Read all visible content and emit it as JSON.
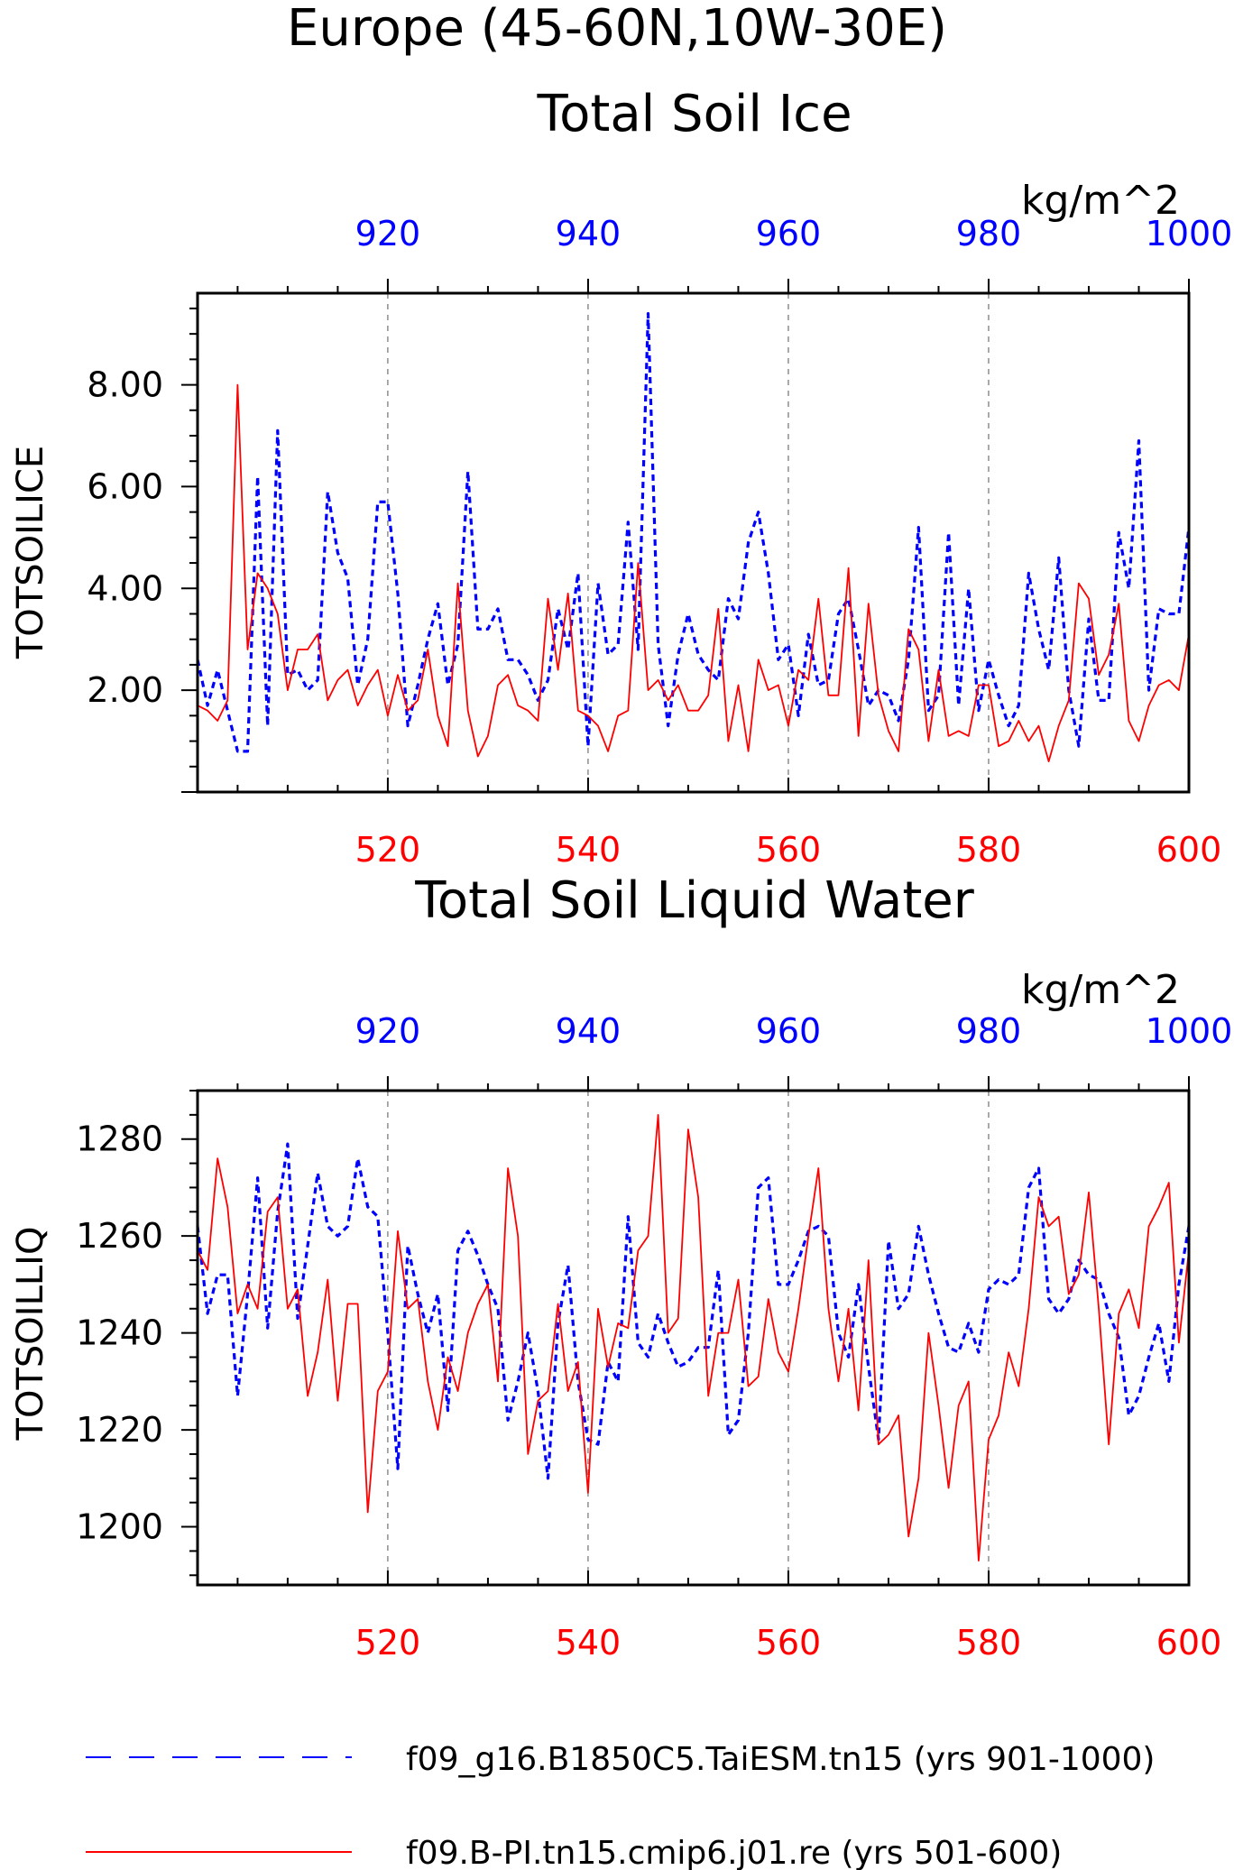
{
  "title": "Europe (45-60N,10W-30E)",
  "legend": {
    "position": "bottom",
    "items": [
      {
        "label": "f09_g16.B1850C5.TaiESM.tn15 (yrs 901-1000)",
        "color": "#0000ff",
        "style": "dashed"
      },
      {
        "label": "f09.B-PI.tn15.cmip6.j01.re (yrs 501-600)",
        "color": "#ff0000",
        "style": "solid"
      }
    ]
  },
  "chart_data": [
    {
      "type": "line",
      "title": "Total Soil Ice",
      "ylabel": "TOTSOILICE",
      "units": "kg/m^2",
      "ylim": [
        0,
        9.8
      ],
      "yticks": [
        2,
        4,
        6,
        8
      ],
      "ytick_labels": [
        "2.00",
        "4.00",
        "6.00",
        "8.00"
      ],
      "x_bottom": {
        "lim": [
          501,
          600
        ],
        "ticks": [
          520,
          540,
          560,
          580,
          600
        ],
        "color": "#ff0000"
      },
      "x_top": {
        "lim": [
          901,
          1000
        ],
        "ticks": [
          920,
          940,
          960,
          980,
          1000
        ],
        "color": "#0000ff"
      },
      "grid": "vertical dashed at major ticks",
      "series": [
        {
          "name": "f09_g16.B1850C5.TaiESM.tn15 (yrs 901-1000)",
          "axis": "top",
          "color": "#0000ff",
          "style": "dashed",
          "x_start": 901,
          "values": [
            2.6,
            1.7,
            2.4,
            1.6,
            0.8,
            0.8,
            6.2,
            1.3,
            7.1,
            2.3,
            2.4,
            2.0,
            2.2,
            5.9,
            4.7,
            4.2,
            2.1,
            3.0,
            5.7,
            5.7,
            3.9,
            1.3,
            2.1,
            3.0,
            3.7,
            2.1,
            2.9,
            6.3,
            3.2,
            3.2,
            3.6,
            2.6,
            2.6,
            2.3,
            1.8,
            2.2,
            3.6,
            2.8,
            4.3,
            0.9,
            4.1,
            2.7,
            2.9,
            5.3,
            2.8,
            9.4,
            2.9,
            1.3,
            2.7,
            3.5,
            2.7,
            2.4,
            2.2,
            3.8,
            3.4,
            4.9,
            5.5,
            4.3,
            2.6,
            2.9,
            1.5,
            3.1,
            2.1,
            2.2,
            3.5,
            3.8,
            2.8,
            1.7,
            2.0,
            1.9,
            1.4,
            2.6,
            5.2,
            1.6,
            1.9,
            5.1,
            1.7,
            4.0,
            1.6,
            2.6,
            1.9,
            1.3,
            1.7,
            4.3,
            3.2,
            2.4,
            4.6,
            2.0,
            0.9,
            3.4,
            1.8,
            1.8,
            5.1,
            4.0,
            6.9,
            2.0,
            3.6,
            3.5,
            3.5,
            5.2
          ]
        },
        {
          "name": "f09.B-PI.tn15.cmip6.j01.re (yrs 501-600)",
          "axis": "bottom",
          "color": "#ff0000",
          "style": "solid",
          "x_start": 501,
          "values": [
            1.7,
            1.6,
            1.4,
            1.8,
            8.0,
            2.8,
            4.3,
            4.0,
            3.5,
            2.0,
            2.8,
            2.8,
            3.1,
            1.8,
            2.2,
            2.4,
            1.7,
            2.1,
            2.4,
            1.5,
            2.3,
            1.6,
            1.8,
            2.8,
            1.5,
            0.9,
            4.1,
            1.6,
            0.7,
            1.1,
            2.1,
            2.3,
            1.7,
            1.6,
            1.4,
            3.8,
            2.4,
            3.9,
            1.6,
            1.5,
            1.3,
            0.8,
            1.5,
            1.6,
            4.5,
            2.0,
            2.2,
            1.8,
            2.1,
            1.6,
            1.6,
            1.9,
            3.6,
            1.0,
            2.1,
            0.8,
            2.6,
            2.0,
            2.1,
            1.3,
            2.4,
            2.2,
            3.8,
            1.9,
            1.9,
            4.4,
            1.1,
            3.7,
            1.9,
            1.2,
            0.8,
            3.2,
            2.8,
            1.0,
            2.4,
            1.1,
            1.2,
            1.1,
            2.1,
            2.1,
            0.9,
            1.0,
            1.4,
            1.0,
            1.3,
            0.6,
            1.3,
            1.8,
            4.1,
            3.8,
            2.3,
            2.7,
            3.7,
            1.4,
            1.0,
            1.7,
            2.1,
            2.2,
            2.0,
            3.1
          ]
        }
      ]
    },
    {
      "type": "line",
      "title": "Total Soil Liquid Water",
      "ylabel": "TOTSOILLIQ",
      "units": "kg/m^2",
      "ylim": [
        1188,
        1290
      ],
      "yticks": [
        1200,
        1220,
        1240,
        1260,
        1280
      ],
      "ytick_labels": [
        "1200",
        "1220",
        "1240",
        "1260",
        "1280"
      ],
      "x_bottom": {
        "lim": [
          501,
          600
        ],
        "ticks": [
          520,
          540,
          560,
          580,
          600
        ],
        "color": "#ff0000"
      },
      "x_top": {
        "lim": [
          901,
          1000
        ],
        "ticks": [
          920,
          940,
          960,
          980,
          1000
        ],
        "color": "#0000ff"
      },
      "grid": "vertical dashed at major ticks",
      "series": [
        {
          "name": "f09_g16.B1850C5.TaiESM.tn15 (yrs 901-1000)",
          "axis": "top",
          "color": "#0000ff",
          "style": "dashed",
          "x_start": 901,
          "values": [
            1262,
            1244,
            1252,
            1252,
            1227,
            1248,
            1272,
            1241,
            1265,
            1279,
            1243,
            1258,
            1273,
            1262,
            1260,
            1262,
            1276,
            1266,
            1264,
            1240,
            1212,
            1258,
            1248,
            1240,
            1248,
            1224,
            1257,
            1261,
            1256,
            1250,
            1245,
            1222,
            1230,
            1240,
            1228,
            1210,
            1242,
            1254,
            1230,
            1218,
            1217,
            1234,
            1230,
            1264,
            1238,
            1235,
            1244,
            1238,
            1233,
            1234,
            1237,
            1237,
            1253,
            1219,
            1222,
            1240,
            1270,
            1272,
            1250,
            1250,
            1255,
            1261,
            1262,
            1260,
            1240,
            1235,
            1250,
            1233,
            1218,
            1259,
            1245,
            1248,
            1262,
            1252,
            1244,
            1237,
            1236,
            1242,
            1236,
            1249,
            1251,
            1250,
            1252,
            1270,
            1274,
            1247,
            1244,
            1247,
            1255,
            1252,
            1251,
            1244,
            1239,
            1223,
            1227,
            1235,
            1242,
            1230,
            1250,
            1262
          ]
        },
        {
          "name": "f09.B-PI.tn15.cmip6.j01.re (yrs 501-600)",
          "axis": "bottom",
          "color": "#ff0000",
          "style": "solid",
          "x_start": 501,
          "values": [
            1257,
            1253,
            1276,
            1266,
            1244,
            1250,
            1245,
            1265,
            1268,
            1245,
            1249,
            1227,
            1236,
            1251,
            1226,
            1246,
            1246,
            1203,
            1228,
            1232,
            1261,
            1245,
            1247,
            1230,
            1220,
            1235,
            1228,
            1240,
            1246,
            1250,
            1230,
            1274,
            1260,
            1215,
            1226,
            1228,
            1246,
            1228,
            1234,
            1207,
            1245,
            1233,
            1242,
            1241,
            1257,
            1260,
            1285,
            1240,
            1243,
            1282,
            1268,
            1227,
            1240,
            1240,
            1251,
            1229,
            1231,
            1247,
            1236,
            1232,
            1245,
            1260,
            1274,
            1245,
            1230,
            1245,
            1224,
            1255,
            1217,
            1219,
            1223,
            1198,
            1210,
            1240,
            1225,
            1208,
            1225,
            1230,
            1193,
            1218,
            1223,
            1236,
            1229,
            1245,
            1268,
            1262,
            1264,
            1248,
            1252,
            1269,
            1245,
            1217,
            1244,
            1249,
            1241,
            1262,
            1266,
            1271,
            1238,
            1257
          ]
        }
      ]
    }
  ]
}
